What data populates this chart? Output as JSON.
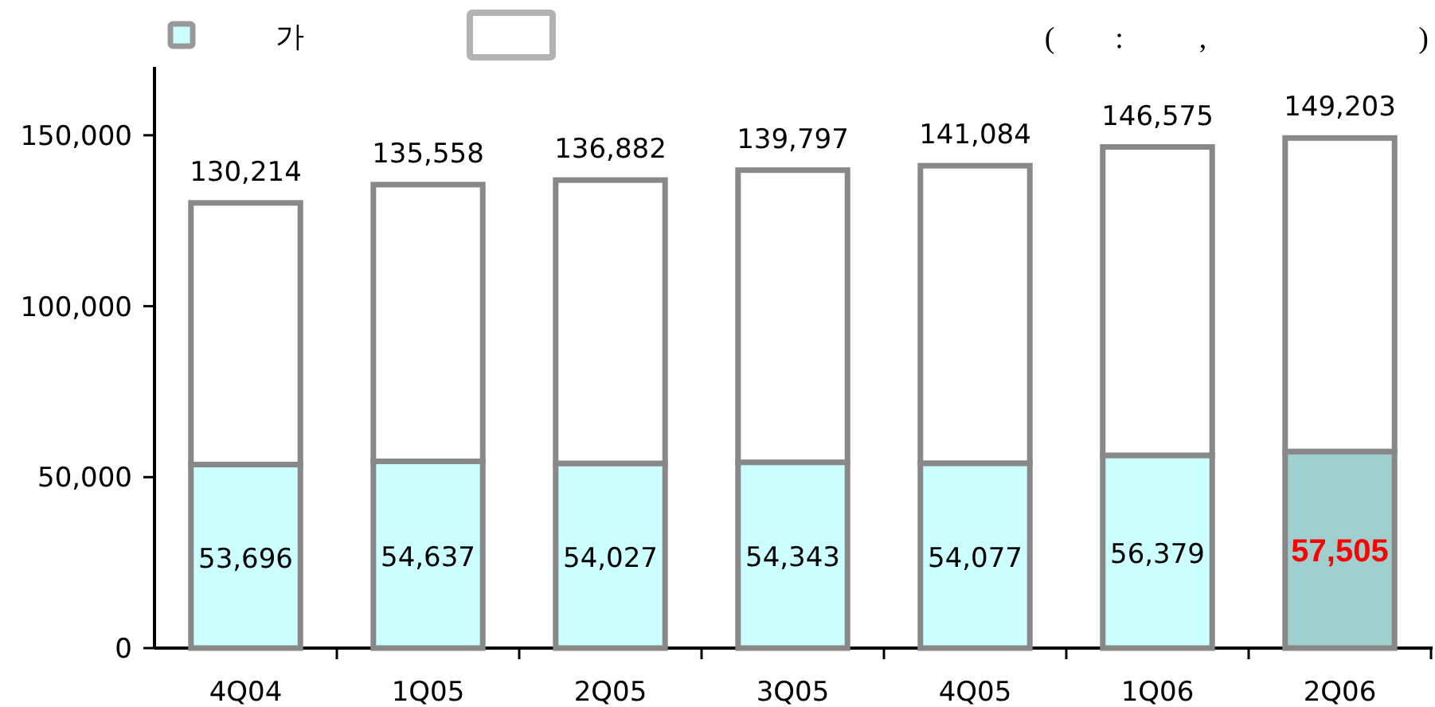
{
  "chart_data": {
    "type": "bar",
    "stacked": true,
    "legend": "top left",
    "categories": [
      "4Q04",
      "1Q05",
      "2Q05",
      "3Q05",
      "4Q05",
      "1Q06",
      "2Q06"
    ],
    "series": [
      {
        "name": "가",
        "color": "#ccffff",
        "colors": [
          "#ccffff",
          "#ccffff",
          "#ccffff",
          "#ccffff",
          "#ccffff",
          "#ccffff",
          "#9fcfcf"
        ],
        "values": [
          53696,
          54637,
          54027,
          54343,
          54077,
          56379,
          57505
        ],
        "value_labels": [
          "53,696",
          "54,637",
          "54,027",
          "54,343",
          "54,077",
          "56,379",
          "57,505"
        ]
      },
      {
        "color": "#ffffff",
        "values": [
          76518,
          80921,
          82855,
          85454,
          87007,
          90196,
          91698
        ]
      }
    ],
    "totals": [
      "130,214",
      "135,558",
      "136,882",
      "139,797",
      "141,084",
      "146,575",
      "149,203"
    ],
    "ylim": [
      0,
      170000
    ],
    "yticks": [
      {
        "value": 0,
        "label": "0"
      },
      {
        "value": 50000,
        "label": "50,000"
      },
      {
        "value": 100000,
        "label": "100,000"
      },
      {
        "value": 150000,
        "label": "150,000"
      }
    ],
    "annotations": [
      "(        :          ,                            )"
    ]
  }
}
